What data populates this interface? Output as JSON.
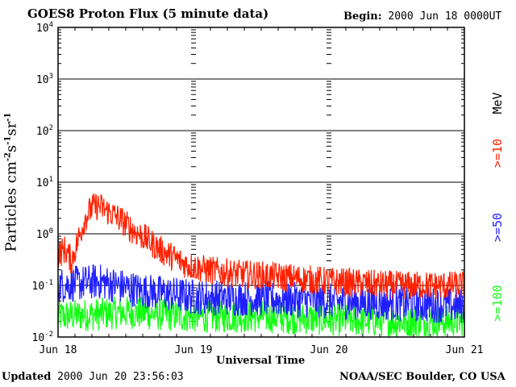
{
  "header": {
    "title": "GOES8 Proton Flux (5 minute data)",
    "begin_label": "Begin:",
    "begin_value": "2000 Jun 18 0000UT"
  },
  "footer": {
    "updated_label": "Updated",
    "updated_value": "2000 Jun 20 23:56:03",
    "credit": "NOAA/SEC Boulder, CO USA"
  },
  "chart_data": {
    "type": "line",
    "title": "GOES8 Proton Flux (5 minute data)",
    "xlabel": "Universal Time",
    "ylabel": "Particles cm-2s-1sr-1",
    "y_scale": "log",
    "ylim": [
      0.01,
      10000
    ],
    "y_ticks": [
      {
        "base": "10",
        "exp": "-2"
      },
      {
        "base": "10",
        "exp": "-1"
      },
      {
        "base": "10",
        "exp": "0"
      },
      {
        "base": "10",
        "exp": "1"
      },
      {
        "base": "10",
        "exp": "2"
      },
      {
        "base": "10",
        "exp": "3"
      },
      {
        "base": "10",
        "exp": "4"
      }
    ],
    "x_ticks": [
      "Jun 18",
      "Jun 19",
      "Jun 20",
      "Jun 21"
    ],
    "grid": true,
    "legend_unit": "MeV",
    "series": [
      {
        "name": ">=10",
        "color": "#ff2000",
        "anchors": [
          [
            0.0,
            0.4
          ],
          [
            0.05,
            0.5
          ],
          [
            0.1,
            0.3
          ],
          [
            0.15,
            0.8
          ],
          [
            0.2,
            2.0
          ],
          [
            0.25,
            3.2
          ],
          [
            0.3,
            3.5
          ],
          [
            0.35,
            2.9
          ],
          [
            0.45,
            2.0
          ],
          [
            0.55,
            1.2
          ],
          [
            0.65,
            0.8
          ],
          [
            0.75,
            0.5
          ],
          [
            0.85,
            0.35
          ],
          [
            0.95,
            0.25
          ],
          [
            1.1,
            0.2
          ],
          [
            1.3,
            0.17
          ],
          [
            1.6,
            0.15
          ],
          [
            2.0,
            0.12
          ],
          [
            2.5,
            0.1
          ],
          [
            3.0,
            0.1
          ]
        ]
      },
      {
        "name": ">=50",
        "color": "#2020ff",
        "anchors": [
          [
            0.0,
            0.1
          ],
          [
            0.3,
            0.12
          ],
          [
            0.6,
            0.08
          ],
          [
            1.0,
            0.06
          ],
          [
            1.5,
            0.055
          ],
          [
            2.0,
            0.05
          ],
          [
            2.5,
            0.045
          ],
          [
            3.0,
            0.04
          ]
        ]
      },
      {
        "name": ">=100",
        "color": "#10ff10",
        "anchors": [
          [
            0.0,
            0.025
          ],
          [
            0.5,
            0.03
          ],
          [
            1.0,
            0.025
          ],
          [
            1.5,
            0.025
          ],
          [
            2.0,
            0.022
          ],
          [
            2.5,
            0.02
          ],
          [
            3.0,
            0.02
          ]
        ]
      }
    ]
  }
}
